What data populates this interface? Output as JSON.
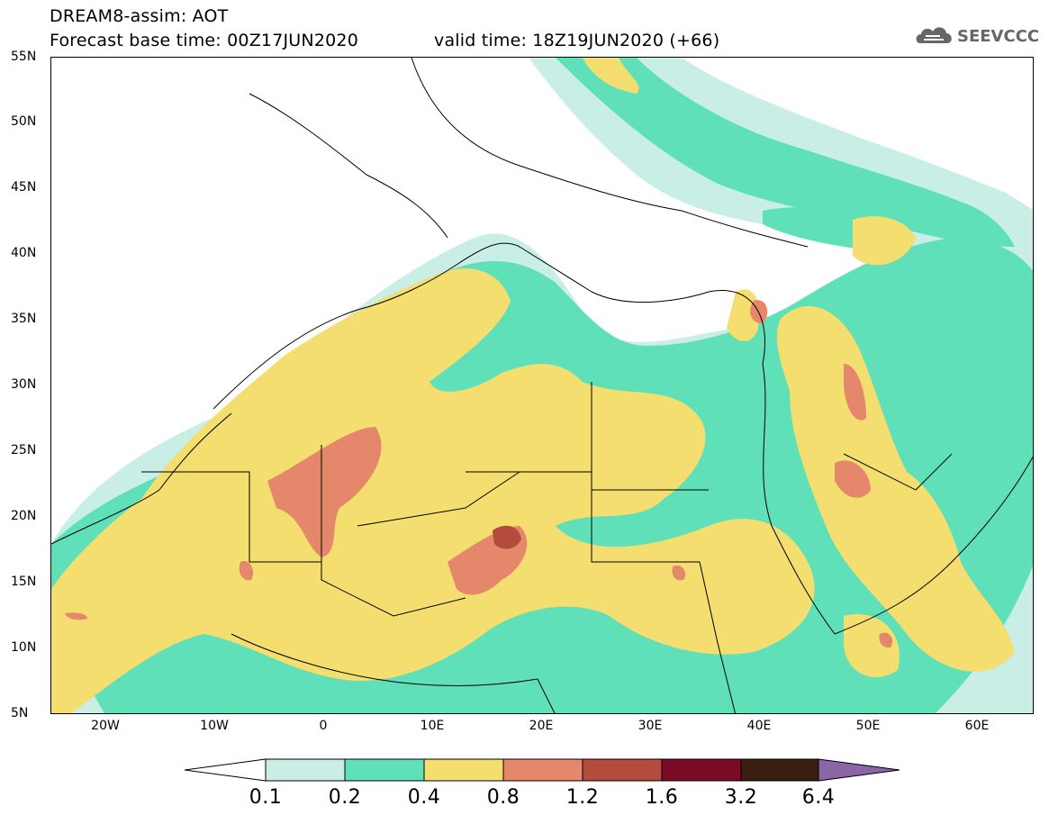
{
  "header": {
    "line1": "DREAM8-assim: AOT",
    "forecast_base": "Forecast base time: 00Z17JUN2020",
    "valid_time": "valid time: 18Z19JUN2020 (+66)"
  },
  "logo": {
    "name": "cloud-icon",
    "text": "SEEVCCC"
  },
  "map": {
    "extent": {
      "lon": [
        -25,
        65
      ],
      "lat": [
        5,
        55
      ]
    },
    "lat_labels": [
      "55N",
      "50N",
      "45N",
      "40N",
      "35N",
      "30N",
      "25N",
      "20N",
      "15N",
      "10N",
      "5N"
    ],
    "lon_labels": [
      "20W",
      "10W",
      "0",
      "10E",
      "20E",
      "30E",
      "40E",
      "50E",
      "60E"
    ]
  },
  "colorbar": {
    "colors": [
      "#ffffff",
      "#c8eee6",
      "#5fe0b8",
      "#f3de6f",
      "#e4876a",
      "#b34c3f",
      "#7a0a26",
      "#3a1e10",
      "#8a66a6"
    ],
    "labels": [
      "0.1",
      "0.2",
      "0.4",
      "0.8",
      "1.2",
      "1.6",
      "3.2",
      "6.4"
    ]
  }
}
